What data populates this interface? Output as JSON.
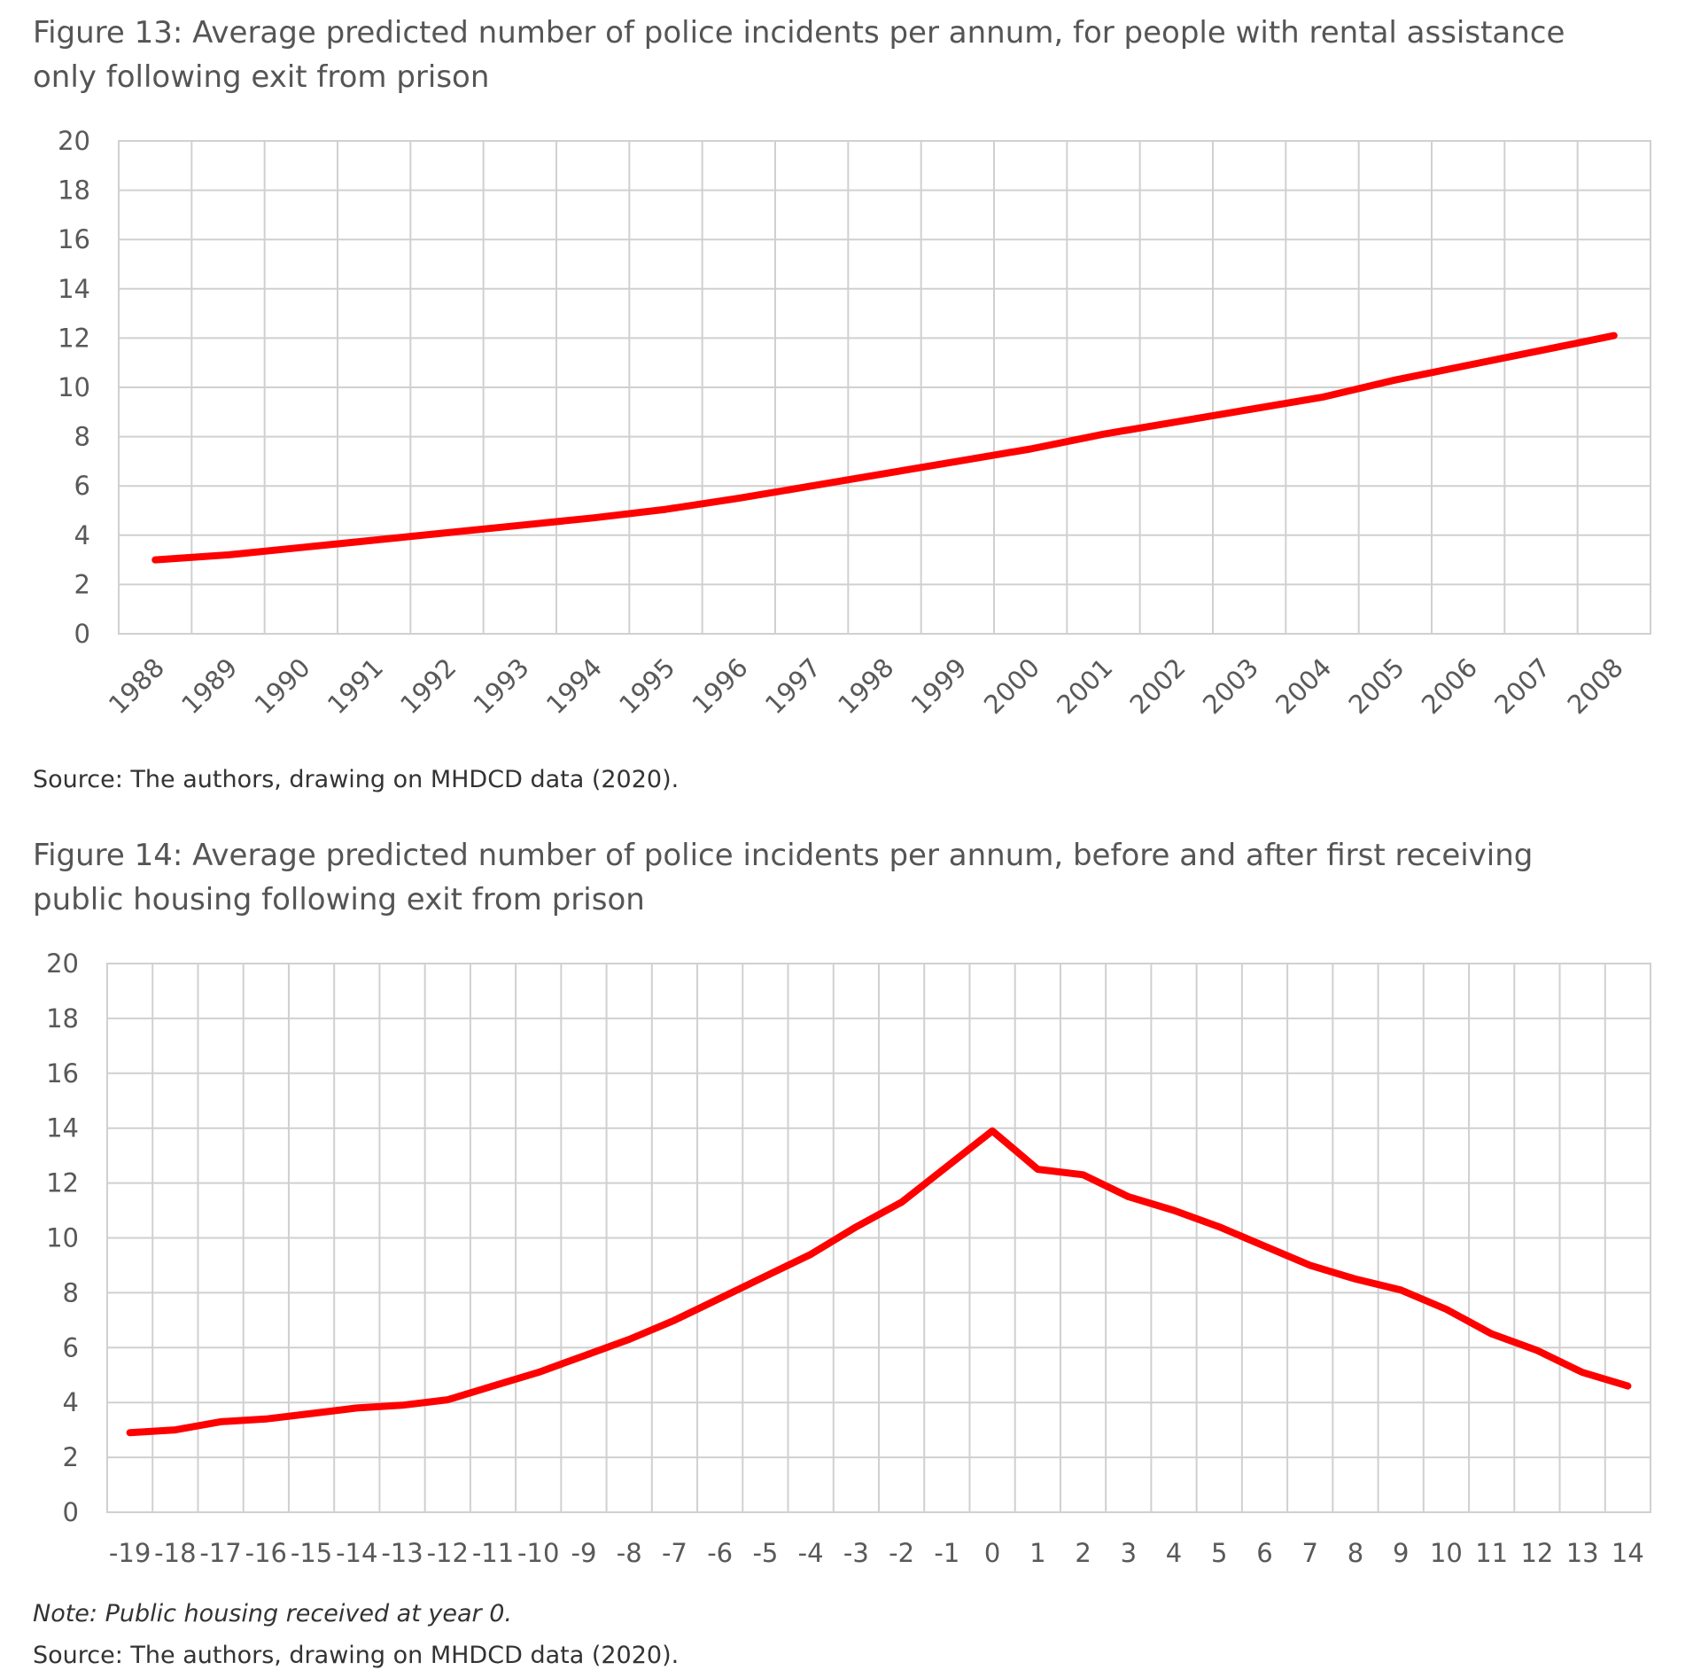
{
  "chart_data": [
    {
      "type": "line",
      "title": "Figure 13: Average predicted number of police incidents per annum, for people with rental assistance only following exit from prison",
      "categories": [
        1988,
        1989,
        1990,
        1991,
        1992,
        1993,
        1994,
        1995,
        1996,
        1997,
        1998,
        1999,
        2000,
        2001,
        2002,
        2003,
        2004,
        2005,
        2006,
        2007,
        2008
      ],
      "values": [
        3.0,
        3.2,
        3.5,
        3.8,
        4.1,
        4.4,
        4.7,
        5.05,
        5.5,
        6.0,
        6.5,
        7.0,
        7.5,
        8.1,
        8.6,
        9.1,
        9.6,
        10.3,
        10.9,
        11.5,
        12.1
      ],
      "color": "#ff0000",
      "ylim": [
        0,
        20
      ],
      "yticks": [
        0,
        2,
        4,
        6,
        8,
        10,
        12,
        14,
        16,
        18,
        20
      ],
      "grid": true,
      "source": "Source: The authors, drawing on MHDCD data (2020)."
    },
    {
      "type": "line",
      "title": "Figure 14: Average predicted number of police incidents per annum, before and after first receiving public housing following exit from prison",
      "categories": [
        -19,
        -18,
        -17,
        -16,
        -15,
        -14,
        -13,
        -12,
        -11,
        -10,
        -9,
        -8,
        -7,
        -6,
        -5,
        -4,
        -3,
        -2,
        -1,
        0,
        1,
        2,
        3,
        4,
        5,
        6,
        7,
        8,
        9,
        10,
        11,
        12,
        13,
        14
      ],
      "values": [
        2.9,
        3.0,
        3.3,
        3.4,
        3.6,
        3.8,
        3.9,
        4.1,
        4.6,
        5.1,
        5.7,
        6.3,
        7.0,
        7.8,
        8.6,
        9.4,
        10.4,
        11.3,
        12.6,
        13.9,
        12.5,
        12.3,
        11.5,
        11.0,
        10.4,
        9.7,
        9.0,
        8.5,
        8.1,
        7.4,
        6.5,
        5.9,
        5.1,
        4.6
      ],
      "color": "#ff0000",
      "ylim": [
        0,
        20
      ],
      "yticks": [
        0,
        2,
        4,
        6,
        8,
        10,
        12,
        14,
        16,
        18,
        20
      ],
      "grid": true,
      "note": "Note: Public housing received at year 0.",
      "source": "Source: The authors, drawing on MHDCD data (2020)."
    }
  ]
}
